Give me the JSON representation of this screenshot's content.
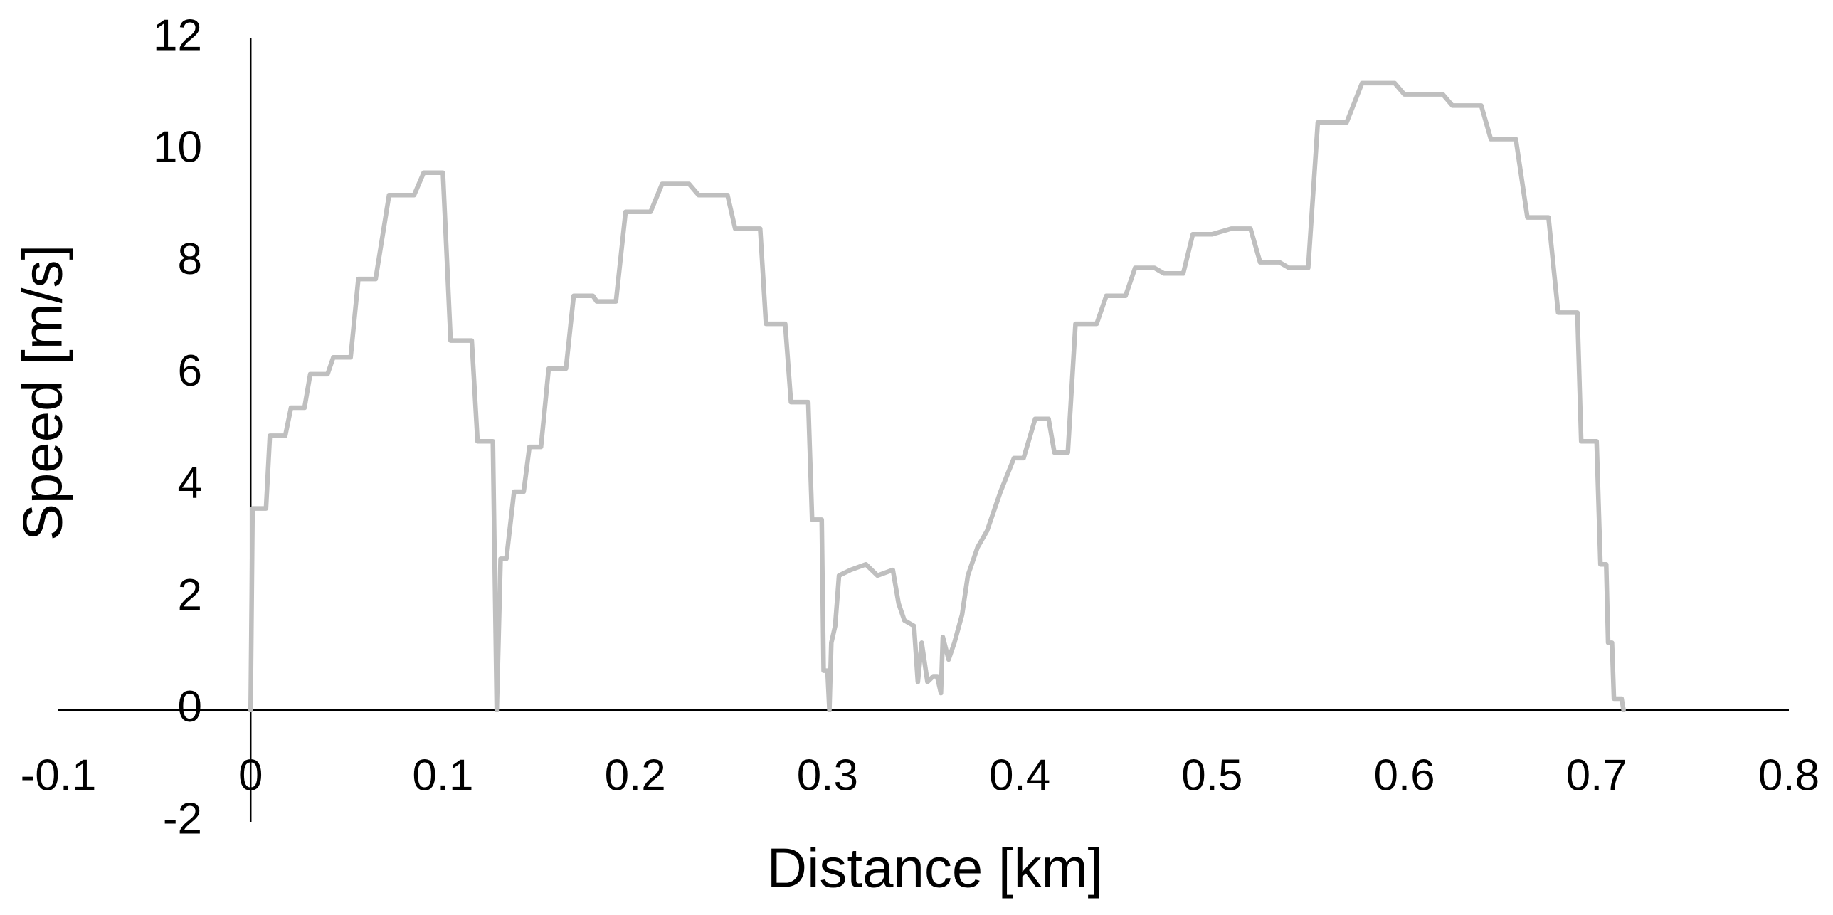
{
  "chart_data": {
    "type": "line",
    "x_label": "Distance [km]",
    "y_label": "Speed [m/s]",
    "color": "#bfbfbf",
    "xlim": [
      -0.1,
      0.8
    ],
    "xticks": [
      -0.1,
      0,
      0.1,
      0.2,
      0.3,
      0.4,
      0.5,
      0.6,
      0.7,
      0.8
    ],
    "ylim": [
      -2,
      12
    ],
    "yticks": [
      -2,
      0,
      2,
      4,
      6,
      8,
      10,
      12
    ],
    "grid": false,
    "x": [
      0,
      0.001,
      0.008,
      0.01,
      0.018,
      0.021,
      0.028,
      0.031,
      0.04,
      0.043,
      0.052,
      0.056,
      0.065,
      0.072,
      0.085,
      0.09,
      0.1,
      0.104,
      0.115,
      0.118,
      0.126,
      0.128,
      0.13,
      0.133,
      0.137,
      0.142,
      0.145,
      0.151,
      0.155,
      0.164,
      0.168,
      0.178,
      0.18,
      0.19,
      0.195,
      0.208,
      0.214,
      0.228,
      0.233,
      0.248,
      0.252,
      0.265,
      0.268,
      0.278,
      0.281,
      0.29,
      0.292,
      0.297,
      0.298,
      0.3,
      0.301,
      0.302,
      0.304,
      0.306,
      0.312,
      0.32,
      0.326,
      0.334,
      0.337,
      0.34,
      0.345,
      0.347,
      0.349,
      0.352,
      0.355,
      0.357,
      0.359,
      0.36,
      0.363,
      0.366,
      0.37,
      0.373,
      0.378,
      0.383,
      0.39,
      0.397,
      0.402,
      0.408,
      0.415,
      0.418,
      0.425,
      0.429,
      0.44,
      0.445,
      0.455,
      0.46,
      0.47,
      0.475,
      0.485,
      0.49,
      0.5,
      0.51,
      0.52,
      0.525,
      0.535,
      0.54,
      0.55,
      0.555,
      0.57,
      0.578,
      0.595,
      0.6,
      0.62,
      0.625,
      0.64,
      0.645,
      0.658,
      0.664,
      0.675,
      0.68,
      0.69,
      0.692,
      0.7,
      0.702,
      0.705,
      0.706,
      0.708,
      0.709,
      0.713,
      0.714
    ],
    "values": [
      0,
      3.6,
      3.6,
      4.9,
      4.9,
      5.4,
      5.4,
      6.0,
      6.0,
      6.3,
      6.3,
      7.7,
      7.7,
      9.2,
      9.2,
      9.6,
      9.6,
      6.6,
      6.6,
      4.8,
      4.8,
      0,
      2.7,
      2.7,
      3.9,
      3.9,
      4.7,
      4.7,
      6.1,
      6.1,
      7.4,
      7.4,
      7.3,
      7.3,
      8.9,
      8.9,
      9.4,
      9.4,
      9.2,
      9.2,
      8.6,
      8.6,
      6.9,
      6.9,
      5.5,
      5.5,
      3.4,
      3.4,
      0.7,
      0.7,
      0,
      1.2,
      1.5,
      2.4,
      2.5,
      2.6,
      2.4,
      2.5,
      1.9,
      1.6,
      1.5,
      0.5,
      1.2,
      0.5,
      0.6,
      0.6,
      0.3,
      1.3,
      0.9,
      1.2,
      1.7,
      2.4,
      2.9,
      3.2,
      3.9,
      4.5,
      4.5,
      5.2,
      5.2,
      4.6,
      4.6,
      6.9,
      6.9,
      7.4,
      7.4,
      7.9,
      7.9,
      7.8,
      7.8,
      8.5,
      8.5,
      8.6,
      8.6,
      8.0,
      8.0,
      7.9,
      7.9,
      10.5,
      10.5,
      11.2,
      11.2,
      11.0,
      11.0,
      10.8,
      10.8,
      10.2,
      10.2,
      8.8,
      8.8,
      7.1,
      7.1,
      4.8,
      4.8,
      2.6,
      2.6,
      1.2,
      1.2,
      0.2,
      0.2,
      0
    ]
  }
}
